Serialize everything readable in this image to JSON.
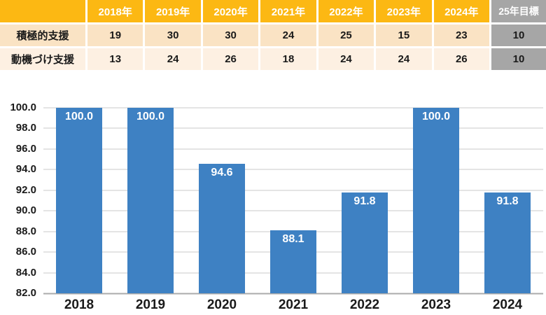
{
  "table": {
    "corner_label": "",
    "year_headers": [
      "2018年",
      "2019年",
      "2020年",
      "2021年",
      "2022年",
      "2023年",
      "2024年"
    ],
    "target_header": "25年目標",
    "rows": [
      {
        "label": "積極的支援",
        "values": [
          "19",
          "30",
          "30",
          "24",
          "25",
          "15",
          "23"
        ],
        "target": "10"
      },
      {
        "label": "動機づけ支援",
        "values": [
          "13",
          "24",
          "26",
          "18",
          "24",
          "24",
          "26"
        ],
        "target": "10"
      }
    ]
  },
  "chart_data": {
    "type": "bar",
    "categories": [
      "2018",
      "2019",
      "2020",
      "2021",
      "2022",
      "2023",
      "2024"
    ],
    "values": [
      100.0,
      100.0,
      94.6,
      88.1,
      91.8,
      100.0,
      91.8
    ],
    "value_labels": [
      "100.0",
      "100.0",
      "94.6",
      "88.1",
      "91.8",
      "100.0",
      "91.8"
    ],
    "title": "",
    "xlabel": "",
    "ylabel": "",
    "ylim": [
      82.0,
      100.0
    ],
    "ytick_step": 2.0,
    "ytick_labels": [
      "100.0",
      "98.0",
      "96.0",
      "94.0",
      "92.0",
      "90.0",
      "88.0",
      "86.0",
      "84.0",
      "82.0"
    ],
    "grid": true,
    "legend": false,
    "bar_color": "#3E81C3",
    "bar_label_color": "#FFFFFF"
  },
  "colors": {
    "header_bg": "#FCB813",
    "header_text": "#FFFFFF",
    "row1_bg": "#FAE3C4",
    "row2_bg": "#FDF0E2",
    "target_bg": "#A6A6A6",
    "cell_text": "#1A1A1A",
    "gridline": "#C9C9C9",
    "baseline": "#ABABAB",
    "axis_text": "#1A1A1A"
  }
}
